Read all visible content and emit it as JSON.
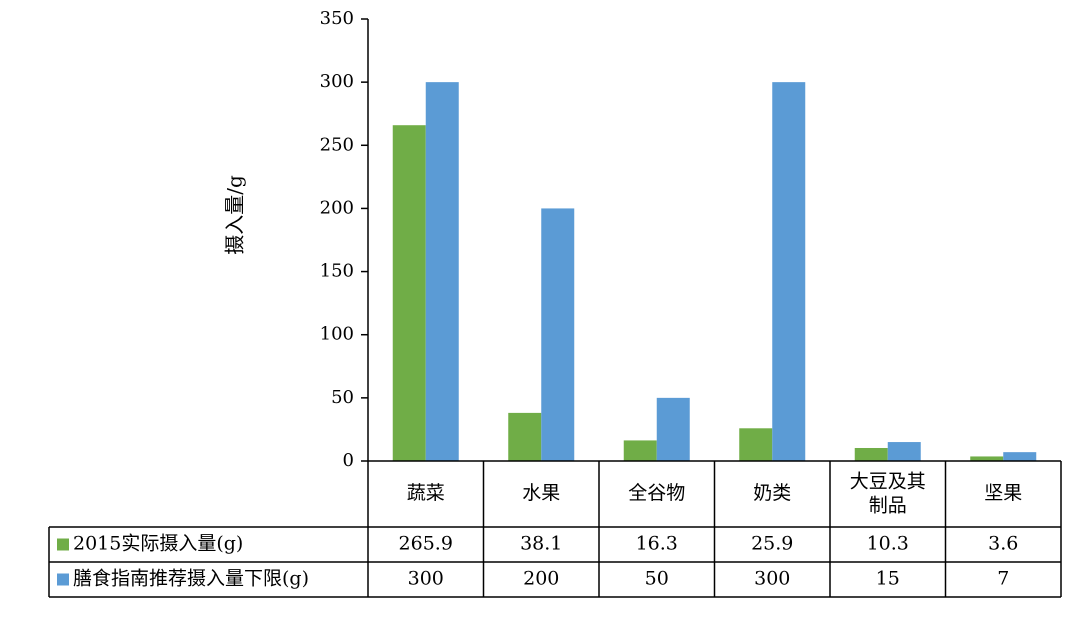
{
  "chart_data": {
    "type": "bar",
    "ylabel": "摄入量/g",
    "ylim": [
      0,
      350
    ],
    "yticks": [
      0,
      50,
      100,
      150,
      200,
      250,
      300,
      350
    ],
    "categories": [
      "蔬菜",
      "水果",
      "全谷物",
      "奶类",
      "大豆及其制品",
      "坚果"
    ],
    "series": [
      {
        "name": "2015实际摄入量(g)",
        "values": [
          265.9,
          38.1,
          16.3,
          25.9,
          10.3,
          3.6
        ],
        "color": "#70AD47"
      },
      {
        "name": "膳食指南推荐摄入量下限(g)",
        "values": [
          300,
          200,
          50,
          300,
          15,
          7
        ],
        "color": "#5B9BD5"
      }
    ],
    "table_values": [
      [
        "265.9",
        "38.1",
        "16.3",
        "25.9",
        "10.3",
        "3.6"
      ],
      [
        "300",
        "200",
        "50",
        "300",
        "15",
        "7"
      ]
    ],
    "legend": "table"
  }
}
